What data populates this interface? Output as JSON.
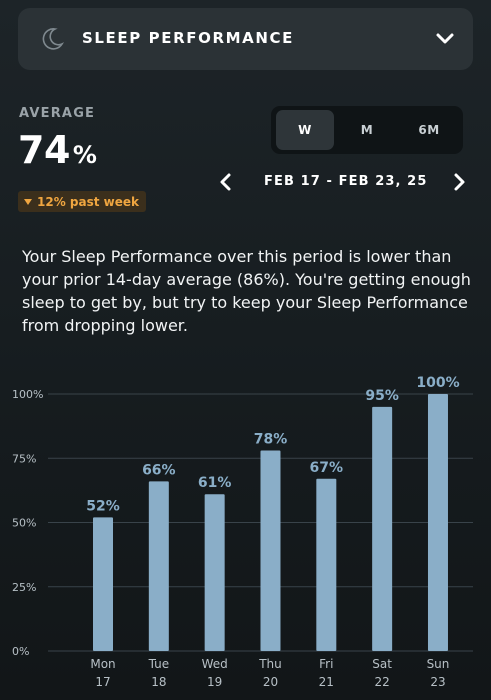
{
  "header": {
    "title": "SLEEP PERFORMANCE",
    "icon": "moon-icon",
    "expand_icon": "chevron-down-icon"
  },
  "summary": {
    "label": "AVERAGE",
    "value": "74",
    "unit": "%",
    "change": "12% past week",
    "change_direction": "down",
    "change_color": "#f0a640"
  },
  "range_toggle": {
    "options": [
      "W",
      "M",
      "6M"
    ],
    "selected": "W"
  },
  "date_nav": {
    "range": "FEB 17 - FEB 23, 25",
    "prev_icon": "chevron-left-icon",
    "next_icon": "chevron-right-icon"
  },
  "description": "Your Sleep Performance over this period is lower than your prior 14-day average (86%). You're getting enough sleep to get by, but try to keep your Sleep Performance from dropping lower.",
  "colors": {
    "bar": "#8aaec8",
    "grid": "#39434a",
    "axis_text": "#b7c0c6"
  },
  "chart_data": {
    "type": "bar",
    "categories": [
      "Mon 17",
      "Tue 18",
      "Wed 19",
      "Thu 20",
      "Fri 21",
      "Sat 22",
      "Sun 23"
    ],
    "day_labels": [
      "Mon",
      "Tue",
      "Wed",
      "Thu",
      "Fri",
      "Sat",
      "Sun"
    ],
    "date_labels": [
      "17",
      "18",
      "19",
      "20",
      "21",
      "22",
      "23"
    ],
    "values": [
      52,
      66,
      61,
      78,
      67,
      95,
      100
    ],
    "value_labels": [
      "52%",
      "66%",
      "61%",
      "78%",
      "67%",
      "95%",
      "100%"
    ],
    "ylim": [
      0,
      100
    ],
    "yticks": [
      0,
      25,
      50,
      75,
      100
    ],
    "ytick_labels": [
      "0%",
      "25%",
      "50%",
      "75%",
      "100%"
    ],
    "grid": true
  }
}
